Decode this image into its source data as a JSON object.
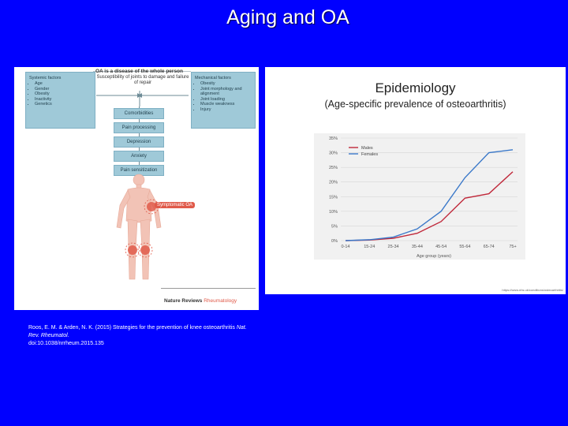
{
  "slide": {
    "title": "Aging and OA"
  },
  "diagram": {
    "heading": "OA is a disease of the whole person",
    "susceptibility": "Susceptibility of joints to damage and failure of repair",
    "systemic": {
      "title": "Systemic factors",
      "items": [
        "Age",
        "Gender",
        "Obesity",
        "Inactivity",
        "Genetics"
      ]
    },
    "mechanical": {
      "title": "Mechanical factors",
      "items": [
        "Obesity",
        "Joint morphology and alignment",
        "Joint loading",
        "Muscle weakness",
        "Injury"
      ]
    },
    "stack": [
      "Comorbidities",
      "Pain processing",
      "Depression",
      "Anxiety",
      "Pain sensitization"
    ],
    "symptomatic": "Symptomatic OA",
    "footer": {
      "nr": "Nature Reviews",
      "rheum": "Rheumatology"
    }
  },
  "epi": {
    "title": "Epidemiology",
    "subtitle": "(Age-specific prevalence of osteoarthritis)",
    "source": "https://www.nhs.uk/conditions/osteoarthritis/"
  },
  "chart_data": {
    "type": "line",
    "categories": [
      "0-14",
      "15-24",
      "25-34",
      "35-44",
      "45-54",
      "55-64",
      "65-74",
      "75+"
    ],
    "series": [
      {
        "name": "Males",
        "values": [
          0,
          0.2,
          0.8,
          2.5,
          6.5,
          14.5,
          16,
          23.5
        ]
      },
      {
        "name": "Females",
        "values": [
          0,
          0.3,
          1.2,
          4,
          10,
          21.5,
          30,
          31
        ]
      }
    ],
    "y_ticks": [
      "0%",
      "5%",
      "10%",
      "15%",
      "20%",
      "25%",
      "30%",
      "35%"
    ],
    "ylim": [
      0,
      35
    ],
    "xlabel": "Age group (years)",
    "legend_position": "top-left",
    "colors": {
      "Males": "#c0283a",
      "Females": "#3a78c9"
    }
  },
  "citation": {
    "text": "Roos, E. M. & Arden, N. K. (2015) Strategies for the prevention of knee osteoarthritis",
    "journal": "Nat. Rev. Rheumatol.",
    "doi": "doi:10.1038/nrrheum.2015.135"
  }
}
